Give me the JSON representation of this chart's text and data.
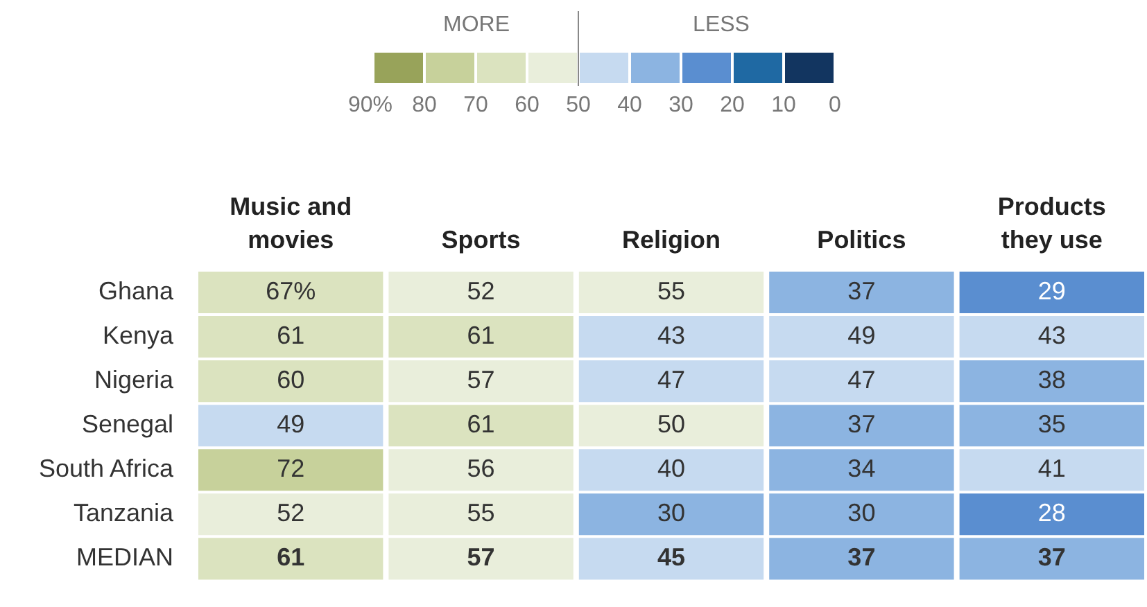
{
  "chart_data": {
    "type": "heatmap",
    "categories": [
      "Music and movies",
      "Sports",
      "Religion",
      "Politics",
      "Products they use"
    ],
    "y_categories": [
      "Ghana",
      "Kenya",
      "Nigeria",
      "Senegal",
      "South Africa",
      "Tanzania",
      "MEDIAN"
    ],
    "cells": [
      [
        67,
        52,
        55,
        37,
        29
      ],
      [
        61,
        61,
        43,
        49,
        43
      ],
      [
        60,
        57,
        47,
        47,
        38
      ],
      [
        49,
        61,
        50,
        37,
        35
      ],
      [
        72,
        56,
        40,
        34,
        41
      ],
      [
        52,
        55,
        30,
        30,
        28
      ],
      [
        61,
        57,
        45,
        37,
        37
      ]
    ],
    "cell_labels": [
      [
        "67%",
        "52",
        "55",
        "37",
        "29"
      ],
      [
        "61",
        "61",
        "43",
        "49",
        "43"
      ],
      [
        "60",
        "57",
        "47",
        "47",
        "38"
      ],
      [
        "49",
        "61",
        "50",
        "37",
        "35"
      ],
      [
        "72",
        "56",
        "40",
        "34",
        "41"
      ],
      [
        "52",
        "55",
        "30",
        "30",
        "28"
      ],
      [
        "61",
        "57",
        "45",
        "37",
        "37"
      ]
    ],
    "clim": [
      90,
      0
    ],
    "cticks": [
      {
        "value": 90,
        "label": "90%"
      },
      80,
      70,
      60,
      50,
      40,
      30,
      20,
      10,
      0
    ],
    "colors": [
      "#98a35a",
      "#c7d19b",
      "#dbe3bf",
      "#e9eedb",
      "#c6daf0",
      "#8cb4e1",
      "#5a8ed0",
      "#1f69a3",
      "#123560"
    ],
    "annotations": [
      "MORE",
      "LESS"
    ]
  }
}
